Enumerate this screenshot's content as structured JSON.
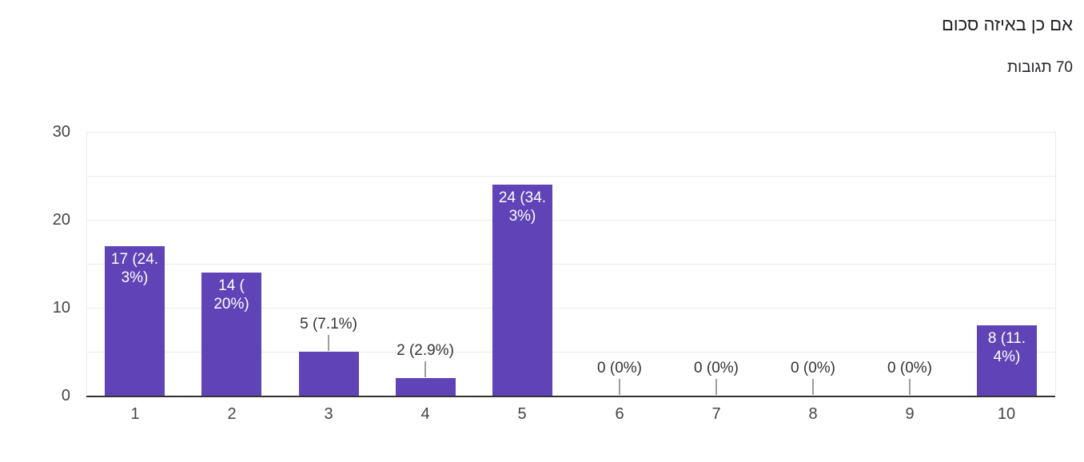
{
  "header": {
    "title": "אם כן באיזה סכום",
    "responses_label": "70 תגובות"
  },
  "chart_data": {
    "type": "bar",
    "title": "אם כן באיזה סכום",
    "subtitle": "70 תגובות",
    "total_responses": 70,
    "categories": [
      "1",
      "2",
      "3",
      "4",
      "5",
      "6",
      "7",
      "8",
      "9",
      "10"
    ],
    "values": [
      17,
      14,
      5,
      2,
      24,
      0,
      0,
      0,
      0,
      8
    ],
    "percentages": [
      "24.3%",
      "20%",
      "7.1%",
      "2.9%",
      "34.3%",
      "0%",
      "0%",
      "0%",
      "0%",
      "11.4%"
    ],
    "bar_labels": [
      "17 (24.3%)",
      "14 (20%)",
      "5 (7.1%)",
      "2 (2.9%)",
      "24 (34.3%)",
      "0 (0%)",
      "0 (0%)",
      "0 (0%)",
      "0 (0%)",
      "8 (11.4%)"
    ],
    "annotation_lines": [
      [
        "17 (24.",
        "3%)"
      ],
      [
        "14 (",
        "20%)"
      ],
      [
        "5 (7.1%)"
      ],
      [
        "2 (2.9%)"
      ],
      [
        "24 (34.",
        "3%)"
      ],
      [
        "0 (0%)"
      ],
      [
        "0 (0%)"
      ],
      [
        "0 (0%)"
      ],
      [
        "0 (0%)"
      ],
      [
        "8 (11.",
        "4%)"
      ]
    ],
    "annotation_placement": [
      "inside",
      "inside",
      "outside",
      "outside",
      "inside",
      "outside",
      "outside",
      "outside",
      "outside",
      "inside"
    ],
    "xlabel": "",
    "ylabel": "",
    "y_ticks": [
      0,
      10,
      20,
      30
    ],
    "ylim": [
      0,
      30
    ],
    "grid": true,
    "gridline_step": 5,
    "legend": "none",
    "colors": {
      "bar": "#5f44b8",
      "grid": "#ebebeb",
      "axis_line": "#333333",
      "tick_label": "#444444",
      "annotation_outside": "#333333",
      "annotation_inside": "#ffffff",
      "stem": "#9e9e9e",
      "title_text": "#202124",
      "background": "#ffffff"
    }
  }
}
